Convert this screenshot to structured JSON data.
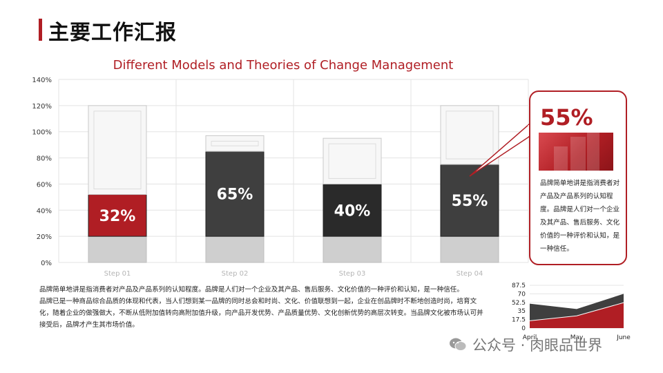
{
  "page_title": "主要工作汇报",
  "colors": {
    "accent": "#b01e24",
    "dark": "#3f3f3f",
    "darker": "#2a2a2a",
    "light": "#cfcfcf"
  },
  "chart_data": [
    {
      "type": "bar",
      "title": "Different Models and Theories of Change Management",
      "categories": [
        "Step 01",
        "Step 02",
        "Step 03",
        "Step 04"
      ],
      "ylim": [
        0,
        140
      ],
      "yticks": [
        0,
        20,
        40,
        60,
        80,
        100,
        120,
        140
      ],
      "ytick_labels": [
        "0%",
        "20%",
        "40%",
        "60%",
        "80%",
        "100%",
        "120%",
        "140%"
      ],
      "series": [
        {
          "values": [
            20,
            20,
            20,
            20
          ]
        },
        {
          "values": [
            32,
            65,
            40,
            55
          ]
        },
        {
          "values": [
            68,
            12,
            35,
            45
          ]
        }
      ],
      "data_labels": [
        "32%",
        "65%",
        "40%",
        "55%"
      ],
      "grid": true
    },
    {
      "type": "area",
      "categories": [
        "April",
        "May",
        "June"
      ],
      "ylim": [
        0,
        87.5
      ],
      "yticks": [
        0,
        17.5,
        35,
        52.5,
        70,
        87.5
      ],
      "ytick_labels": [
        "0",
        "17.5",
        "35",
        "52.5",
        "70",
        "87.5"
      ],
      "series": [
        {
          "values": [
            15,
            25,
            52
          ]
        },
        {
          "values": [
            35,
            14,
            18
          ]
        }
      ]
    }
  ],
  "callout": {
    "value": "55%",
    "text": "品牌简单地讲是指消费者对产品及产品系列的认知程度。品牌是人们对一个企业及其产品、售后服务、文化价值的一种评价和认知，是一种信任。"
  },
  "body": {
    "p1": "品牌简单地讲是指消费者对产品及产品系列的认知程度。品牌是人们对一个企业及其产品、售后服务、文化价值的一种评价和认知，是一种信任。",
    "p2": "品牌已是一种商品综合品质的体现和代表，当人们想到某一品牌的同时总会和时尚、文化、价值联想到一起，企业在创品牌时不断地创造时尚，培育文化，随着企业的做强做大，不断从低附加值转向高附加值升级，向产品开发优势、产品质量优势、文化创新优势的高层次转变。当品牌文化被市场认可并接受后，品牌才产生其市场价值。"
  },
  "watermark": {
    "text": "公众号 · 肉眼品世界",
    "icon": "wechat-icon"
  }
}
